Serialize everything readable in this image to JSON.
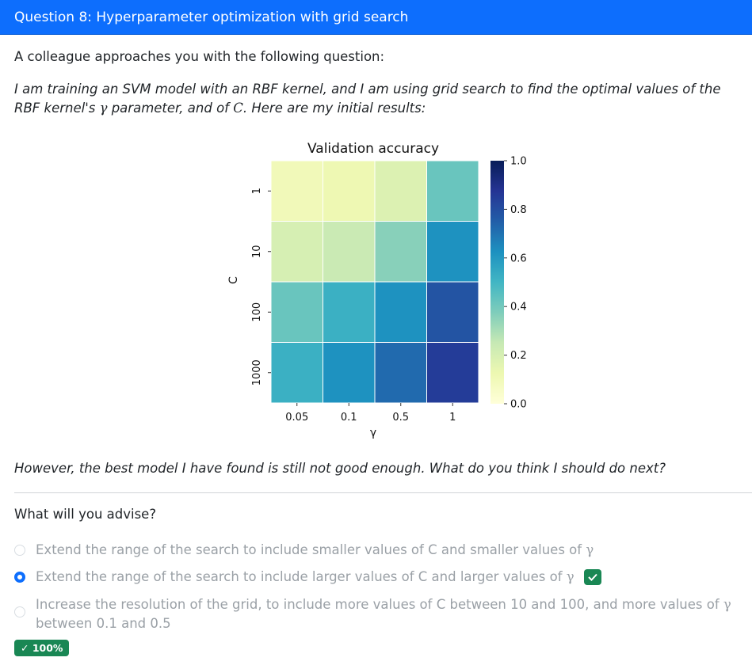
{
  "header": {
    "title": "Question 8: Hyperparameter optimization with grid search"
  },
  "intro": "A colleague approaches you with the following question:",
  "question": {
    "part1": "I am training an SVM model with an RBF kernel, and I am using grid search to find the optimal values of the RBF kernel's",
    "gamma1": "γ",
    "part2": " parameter, and of ",
    "C": "C",
    "part3": ". Here are my initial results:"
  },
  "chart_data": {
    "type": "heatmap",
    "title": "Validation accuracy",
    "xlabel": "γ",
    "ylabel": "C",
    "x": [
      "0.05",
      "0.1",
      "0.5",
      "1"
    ],
    "y": [
      "1",
      "10",
      "100",
      "1000"
    ],
    "values": [
      [
        0.1,
        0.12,
        0.18,
        0.42
      ],
      [
        0.2,
        0.24,
        0.36,
        0.62
      ],
      [
        0.42,
        0.52,
        0.62,
        0.78
      ],
      [
        0.52,
        0.62,
        0.72,
        0.85
      ]
    ],
    "colorbar": {
      "min": 0.0,
      "max": 1.0,
      "ticks": [
        "0.0",
        "0.2",
        "0.4",
        "0.6",
        "0.8",
        "1.0"
      ],
      "colormap": "YlGnBu"
    }
  },
  "followup": "However, the best model I have found is still not good enough. What do you think I should do next?",
  "prompt": "What will you advise?",
  "options": [
    {
      "text": "Extend the range of the search to include smaller values of C and smaller values of ",
      "gamma": "γ",
      "selected": false,
      "correct": false
    },
    {
      "text": "Extend the range of the search to include larger values of C and larger values of ",
      "gamma": "γ",
      "selected": true,
      "correct": true
    },
    {
      "text": "Increase the resolution of the grid, to include more values of C between 10 and 100, and more values of ",
      "gamma": "γ",
      "text2": " between 0.1 and 0.5",
      "selected": false,
      "correct": false
    }
  ],
  "score": "✓ 100%",
  "colors": {
    "accent": "#0d6efd",
    "success": "#198754"
  }
}
